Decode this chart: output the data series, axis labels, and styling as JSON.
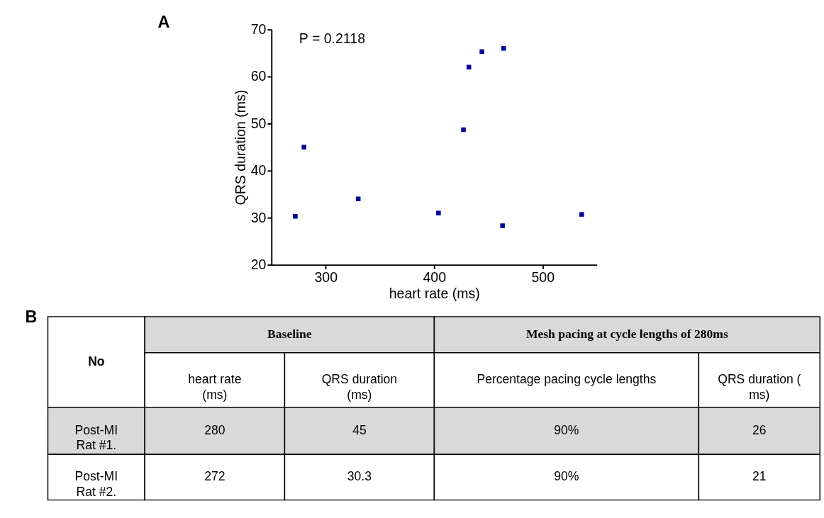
{
  "chart_data": [
    {
      "type": "scatter",
      "title": "A",
      "xlabel": "heart rate (ms)",
      "ylabel": "QRS duration (ms)",
      "x": [
        272,
        280,
        330,
        404,
        427,
        432,
        444,
        464,
        463,
        536
      ],
      "series": [
        {
          "color": "#00009c",
          "values": [
            30.3,
            45,
            34,
            31.0,
            48.7,
            62,
            65.3,
            66,
            28.3,
            30.7
          ]
        }
      ],
      "xlim": [
        250,
        550
      ],
      "xticks": [
        300,
        400,
        500
      ],
      "ylim": [
        20,
        70
      ],
      "yticks": [
        20,
        30,
        40,
        50,
        60,
        70
      ],
      "marker": "square",
      "grid": false,
      "annotations": [
        "P = 0.2118"
      ]
    },
    {
      "type": "other",
      "title": "B",
      "annotations": [
        "No",
        "Baseline",
        "Mesh pacing at cycle lengths of 280ms",
        "heart rate\n(ms)",
        "QRS duration\n(ms)",
        "Percentage pacing cycle lengths",
        "QRS duration (\nms)",
        "Post-MI\nRat #1.",
        "280",
        "45",
        "90%",
        "26",
        "Post-MI\nRat #2.",
        "272",
        "30.3",
        "90%",
        "21"
      ]
    }
  ]
}
